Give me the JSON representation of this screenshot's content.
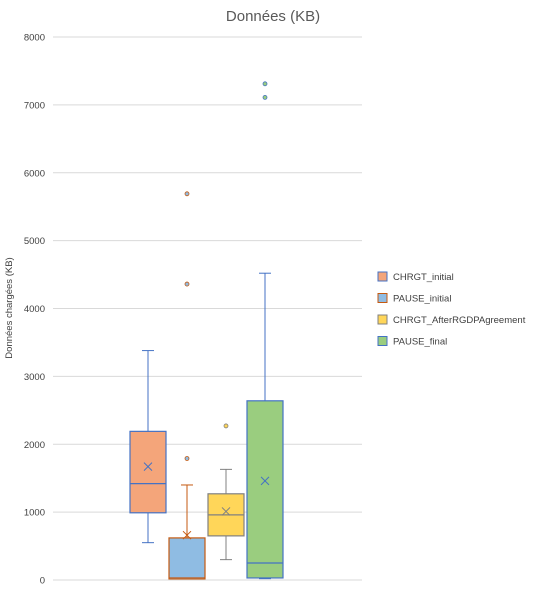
{
  "chart_data": {
    "type": "boxplot",
    "title": "Données (KB)",
    "xlabel": "",
    "ylabel": "Données chargées (KB)",
    "ylim": [
      0,
      8000
    ],
    "y_ticks": [
      0,
      1000,
      2000,
      3000,
      4000,
      5000,
      6000,
      7000,
      8000
    ],
    "grid": true,
    "legend_position": "right",
    "series": [
      {
        "name": "CHRGT_initial",
        "color": "#F4A57A",
        "stroke": "#4472C4",
        "whisker_low": 550,
        "q1": 990,
        "median": 1420,
        "q3": 2190,
        "whisker_high": 3380,
        "mean": 1670,
        "outliers": []
      },
      {
        "name": "PAUSE_initial",
        "color": "#8FBCE3",
        "stroke": "#C55A11",
        "whisker_low": 10,
        "q1": 10,
        "median": 30,
        "q3": 620,
        "whisker_high": 1400,
        "mean": 660,
        "outliers": [
          1790,
          4360,
          5690
        ]
      },
      {
        "name": "CHRGT_AfterRGDPAgreement",
        "color": "#FFD659",
        "stroke": "#808080",
        "whisker_low": 300,
        "q1": 650,
        "median": 960,
        "q3": 1270,
        "whisker_high": 1630,
        "mean": 1010,
        "outliers": [
          2270
        ]
      },
      {
        "name": "PAUSE_final",
        "color": "#9ACD7F",
        "stroke": "#4472C4",
        "whisker_low": 20,
        "q1": 30,
        "median": 250,
        "q3": 2640,
        "whisker_high": 4520,
        "mean": 1460,
        "outliers": [
          7110,
          7310
        ]
      }
    ]
  }
}
